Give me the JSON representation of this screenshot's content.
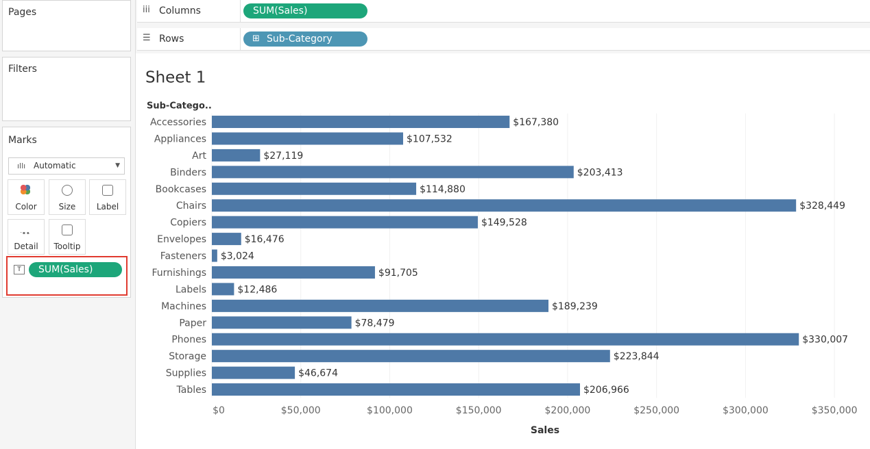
{
  "panels": {
    "pages": "Pages",
    "filters": "Filters"
  },
  "marks": {
    "title": "Marks",
    "mark_type": "Automatic",
    "cards": [
      "Color",
      "Size",
      "Label",
      "Detail",
      "Tooltip"
    ],
    "pill": "SUM(Sales)"
  },
  "shelves": {
    "columns_label": "Columns",
    "columns_pill": "SUM(Sales)",
    "rows_label": "Rows",
    "rows_pill": "Sub-Category"
  },
  "chart_data": {
    "type": "bar",
    "orientation": "horizontal",
    "title": "Sheet 1",
    "y_label": "Sub-Catego..",
    "x_label": "Sales",
    "color": "#4e79a7",
    "grid": true,
    "categories": [
      "Accessories",
      "Appliances",
      "Art",
      "Binders",
      "Bookcases",
      "Chairs",
      "Copiers",
      "Envelopes",
      "Fasteners",
      "Furnishings",
      "Labels",
      "Machines",
      "Paper",
      "Phones",
      "Storage",
      "Supplies",
      "Tables"
    ],
    "values": [
      167380,
      107532,
      27119,
      203413,
      114880,
      328449,
      149528,
      16476,
      3024,
      91705,
      12486,
      189239,
      78479,
      330007,
      223844,
      46674,
      206966
    ],
    "value_labels": [
      "$167,380",
      "$107,532",
      "$27,119",
      "$203,413",
      "$114,880",
      "$328,449",
      "$149,528",
      "$16,476",
      "$3,024",
      "$91,705",
      "$12,486",
      "$189,239",
      "$78,479",
      "$330,007",
      "$223,844",
      "$46,674",
      "$206,966"
    ],
    "xlim": [
      0,
      370000
    ],
    "xticks": [
      {
        "value": 0,
        "label": "$0"
      },
      {
        "value": 50000,
        "label": "$50,000"
      },
      {
        "value": 100000,
        "label": "$100,000"
      },
      {
        "value": 150000,
        "label": "$150,000"
      },
      {
        "value": 200000,
        "label": "$200,000"
      },
      {
        "value": 250000,
        "label": "$250,000"
      },
      {
        "value": 300000,
        "label": "$300,000"
      },
      {
        "value": 350000,
        "label": "$350,000"
      }
    ]
  }
}
